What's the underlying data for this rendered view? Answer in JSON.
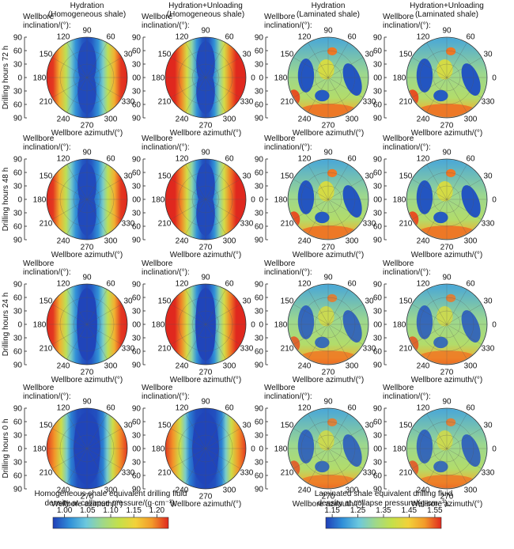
{
  "chart_data": {
    "type": "heatmap",
    "plot_kind": "polar contour (wellbore inclination vs azimuth)",
    "column_headers": [
      [
        "Hydration",
        "(Homogeneous shale)"
      ],
      [
        "Hydration+Unloading",
        "(Homogeneous shale)"
      ],
      [
        "Hydration",
        "(Laminated shale)"
      ],
      [
        "Hydration+Unloading",
        "(Laminated shale)"
      ]
    ],
    "row_labels": [
      "Drilling hours 72 h",
      "Drilling hours 48 h",
      "Drilling hours 24 h",
      "Drilling hours 0 h"
    ],
    "inclination_label": [
      "Wellbore",
      "inclination/(°):"
    ],
    "azimuth_label": "Wellbore azimuth/(°)",
    "azimuth_ticks": [
      "0",
      "30",
      "60",
      "90",
      "120",
      "150",
      "180",
      "210",
      "240",
      "270",
      "300",
      "330"
    ],
    "inclination_ticks": [
      "90",
      "60",
      "30",
      "0",
      "30",
      "60",
      "90"
    ],
    "colorbars": [
      {
        "title": [
          "Homogeneous shale equivalent drilling fluid",
          "density at collapse pressure/(g·cm⁻³):"
        ],
        "range": [
          0.975,
          1.225
        ],
        "ticks": [
          "1.00",
          "1.05",
          "1.10",
          "1.15",
          "1.20"
        ],
        "tick_values": [
          1.0,
          1.05,
          1.1,
          1.15,
          1.2
        ]
      },
      {
        "title": [
          "Laminated shale equivalent drilling fluid",
          "density at collapse pressure/(g·cm⁻³):"
        ],
        "range": [
          1.125,
          1.575
        ],
        "ticks": [
          "1.15",
          "1.25",
          "1.35",
          "1.45",
          "1.55"
        ],
        "tick_values": [
          1.15,
          1.25,
          1.35,
          1.45,
          1.55
        ]
      }
    ],
    "colormap": [
      "#1f3fb8",
      "#2f8fd8",
      "#6cc8de",
      "#9fd88a",
      "#c4e04a",
      "#f2d23a",
      "#f29a2a",
      "#e0281e"
    ]
  }
}
